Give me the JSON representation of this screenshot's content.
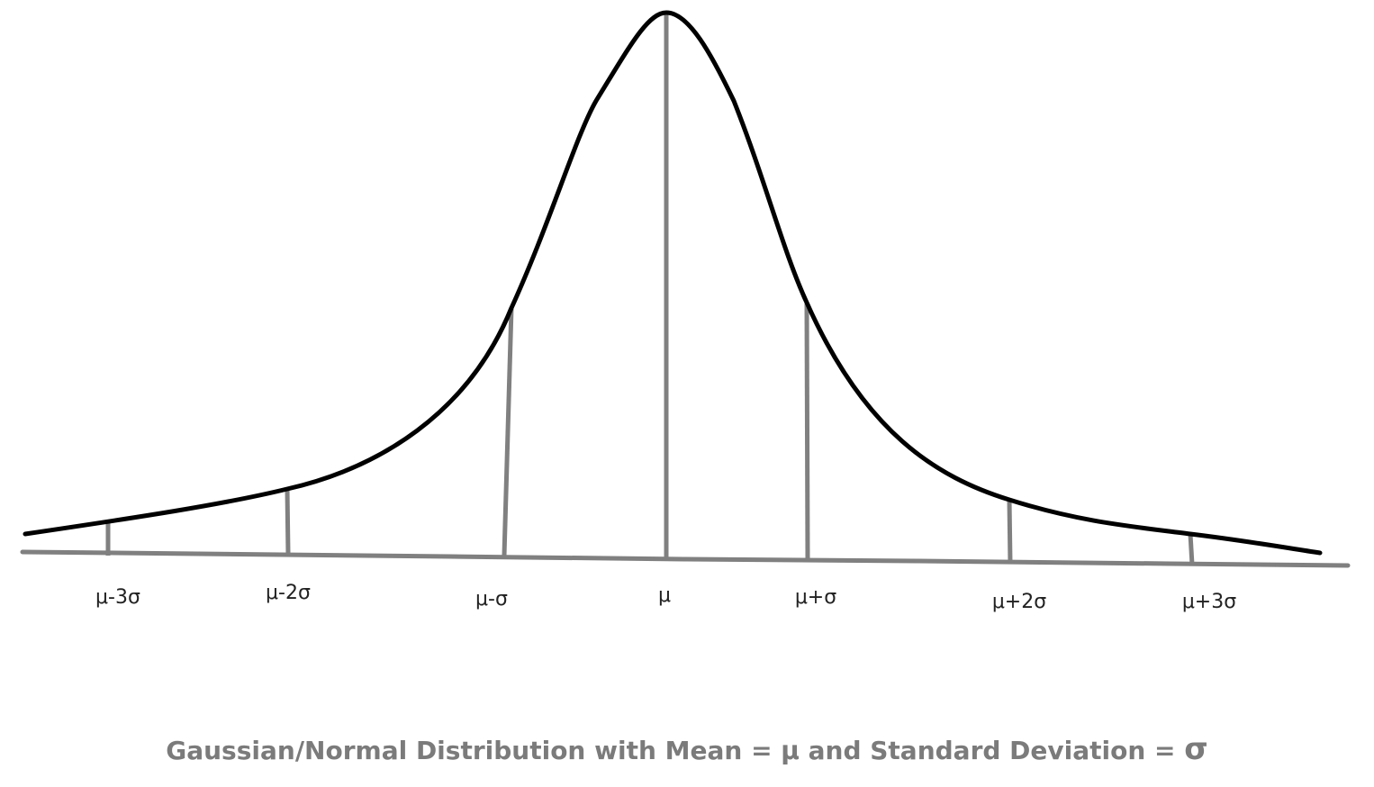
{
  "diagram": {
    "caption_text": "Gaussian/Normal Distribution with Mean = μ and Standard Deviation = ",
    "caption_symbol": "σ",
    "marker_labels": [
      "μ-3σ",
      "μ-2σ",
      "μ-σ",
      "μ",
      "μ+σ",
      "μ+2σ",
      "μ+3σ"
    ],
    "colors": {
      "curve": "#000000",
      "axis_and_markers": "#808080",
      "labels": "#222222",
      "caption": "#7b7b7b"
    }
  }
}
